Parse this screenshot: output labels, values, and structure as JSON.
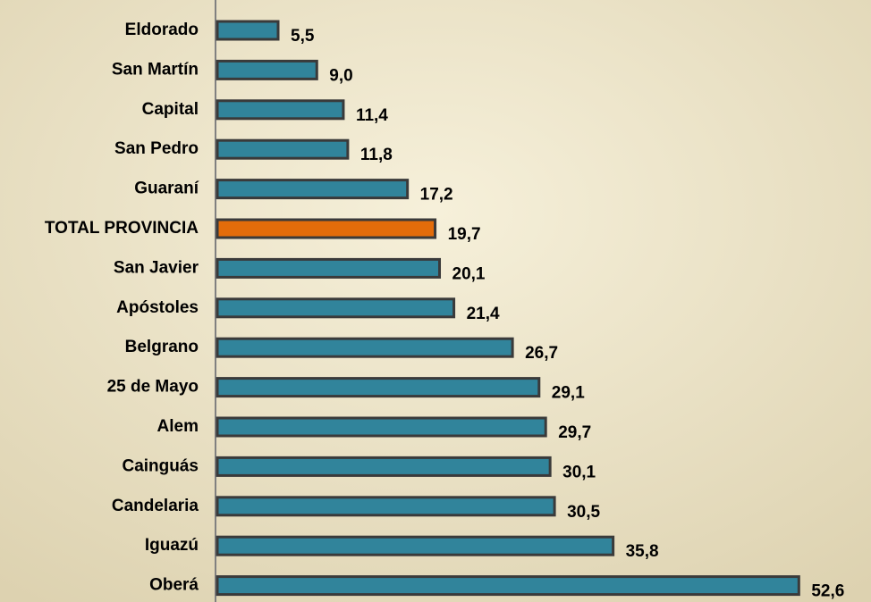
{
  "chart_data": {
    "type": "hbar",
    "categories": [
      "Eldorado",
      "San Martín",
      "Capital",
      "San Pedro",
      "Guaraní",
      "TOTAL PROVINCIA",
      "San Javier",
      "Apóstoles",
      "Belgrano",
      "25 de Mayo",
      "Alem",
      "Cainguás",
      "Candelaria",
      "Iguazú",
      "Oberá"
    ],
    "values": [
      5.5,
      9.0,
      11.4,
      11.8,
      17.2,
      19.7,
      20.1,
      21.4,
      26.7,
      29.1,
      29.7,
      30.1,
      30.5,
      35.8,
      52.6
    ],
    "value_labels": [
      "5,5",
      "9,0",
      "11,4",
      "11,8",
      "17,2",
      "19,7",
      "20,1",
      "21,4",
      "26,7",
      "29,1",
      "29,7",
      "30,1",
      "30,5",
      "35,8",
      "52,6"
    ],
    "colors": [
      "#31849b",
      "#31849b",
      "#31849b",
      "#31849b",
      "#31849b",
      "#e36c0a",
      "#31849b",
      "#31849b",
      "#31849b",
      "#31849b",
      "#31849b",
      "#31849b",
      "#31849b",
      "#31849b",
      "#31849b"
    ],
    "xlim": [
      0,
      55
    ]
  }
}
